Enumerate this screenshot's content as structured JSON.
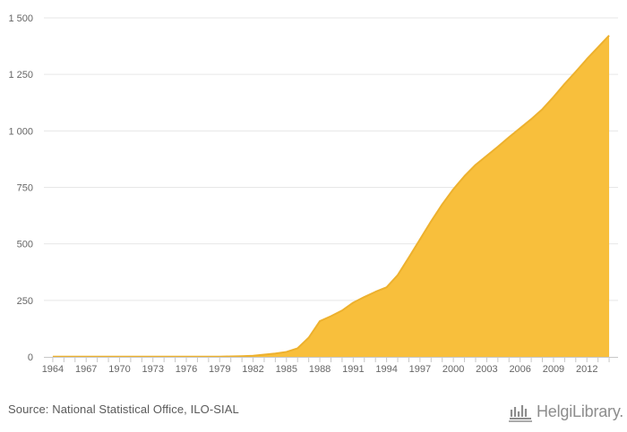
{
  "chart_data": {
    "type": "area",
    "title": "",
    "xlabel": "",
    "ylabel": "",
    "x": [
      1964,
      1965,
      1966,
      1967,
      1968,
      1969,
      1970,
      1971,
      1972,
      1973,
      1974,
      1975,
      1976,
      1977,
      1978,
      1979,
      1980,
      1981,
      1982,
      1983,
      1984,
      1985,
      1986,
      1987,
      1988,
      1989,
      1990,
      1991,
      1992,
      1993,
      1994,
      1995,
      1996,
      1997,
      1998,
      1999,
      2000,
      2001,
      2002,
      2003,
      2004,
      2005,
      2006,
      2007,
      2008,
      2009,
      2010,
      2011,
      2012,
      2013,
      2014
    ],
    "series": [
      {
        "name": "",
        "color": "#F8BF3C",
        "line_color": "#EDB12E",
        "values": [
          1,
          1,
          1,
          1,
          1,
          1,
          1,
          1,
          1,
          1,
          1,
          1,
          1,
          1,
          1,
          1,
          2,
          3,
          5,
          10,
          15,
          22,
          38,
          85,
          158,
          180,
          205,
          240,
          265,
          288,
          308,
          362,
          440,
          520,
          600,
          675,
          742,
          800,
          850,
          890,
          930,
          972,
          1012,
          1052,
          1096,
          1150,
          1208,
          1262,
          1318,
          1370,
          1422
        ]
      }
    ],
    "x_ticks": [
      1964,
      1967,
      1970,
      1973,
      1976,
      1979,
      1982,
      1985,
      1988,
      1991,
      1994,
      1997,
      2000,
      2003,
      2006,
      2009,
      2012
    ],
    "x_tick_labels": [
      "1964",
      "1967",
      "1970",
      "1973",
      "1976",
      "1979",
      "1982",
      "1985",
      "1988",
      "1991",
      "1994",
      "1997",
      "2000",
      "2003",
      "2006",
      "2009",
      "2012"
    ],
    "y_ticks": [
      0,
      250,
      500,
      750,
      1000,
      1250,
      1500
    ],
    "y_tick_labels": [
      "0",
      "250",
      "500",
      "750",
      "1 000",
      "1 250",
      "1 500"
    ],
    "ylim": [
      0,
      1500
    ],
    "xlim": [
      1963.2,
      2014.8
    ],
    "grid": true,
    "legend": "none"
  },
  "footer": {
    "source": "Source: National Statistical Office, ILO-SIAL",
    "brand": "HelgiLibrary."
  },
  "icons": {
    "brand_icon": "library-columns-icon"
  }
}
